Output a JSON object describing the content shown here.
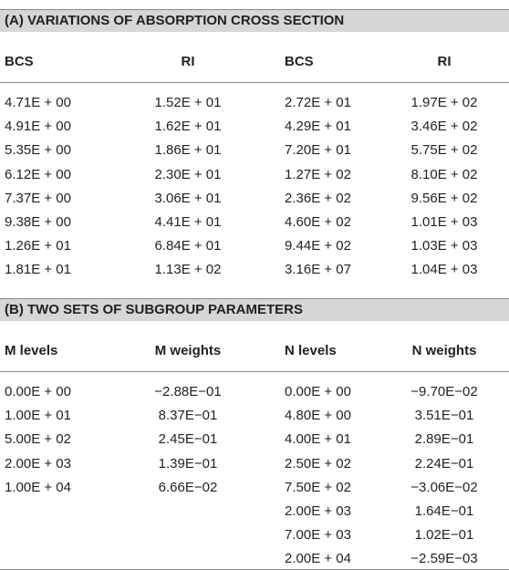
{
  "sections": [
    {
      "title": "(A) VARIATIONS OF ABSORPTION CROSS SECTION",
      "headers": [
        "BCS",
        "RI",
        "BCS",
        "RI"
      ],
      "rows": [
        [
          "4.71E + 00",
          "1.52E + 01",
          "2.72E + 01",
          "1.97E + 02"
        ],
        [
          "4.91E + 00",
          "1.62E + 01",
          "4.29E + 01",
          "3.46E + 02"
        ],
        [
          "5.35E + 00",
          "1.86E + 01",
          "7.20E + 01",
          "5.75E + 02"
        ],
        [
          "6.12E + 00",
          "2.30E + 01",
          "1.27E + 02",
          "8.10E + 02"
        ],
        [
          "7.37E + 00",
          "3.06E + 01",
          "2.36E + 02",
          "9.56E + 02"
        ],
        [
          "9.38E + 00",
          "4.41E + 01",
          "4.60E + 02",
          "1.01E + 03"
        ],
        [
          "1.26E + 01",
          "6.84E + 01",
          "9.44E + 02",
          "1.03E + 03"
        ],
        [
          "1.81E + 01",
          "1.13E + 02",
          "3.16E + 07",
          "1.04E + 03"
        ]
      ]
    },
    {
      "title": "(B) TWO SETS OF SUBGROUP PARAMETERS",
      "headers": [
        "M levels",
        "M weights",
        "N levels",
        "N weights"
      ],
      "rows": [
        [
          "0.00E + 00",
          "−2.88E−01",
          "0.00E + 00",
          "−9.70E−02"
        ],
        [
          "1.00E + 01",
          "8.37E−01",
          "4.80E + 00",
          "3.51E−01"
        ],
        [
          "5.00E + 02",
          "2.45E−01",
          "4.00E + 01",
          "2.89E−01"
        ],
        [
          "2.00E + 03",
          "1.39E−01",
          "2.50E + 02",
          "2.24E−01"
        ],
        [
          "1.00E + 04",
          "6.66E−02",
          "7.50E + 02",
          "−3.06E−02"
        ],
        [
          null,
          null,
          "2.00E + 03",
          "1.64E−01"
        ],
        [
          null,
          null,
          "7.00E + 03",
          "1.02E−01"
        ],
        [
          null,
          null,
          "2.00E + 04",
          "−2.59E−03"
        ]
      ]
    }
  ]
}
